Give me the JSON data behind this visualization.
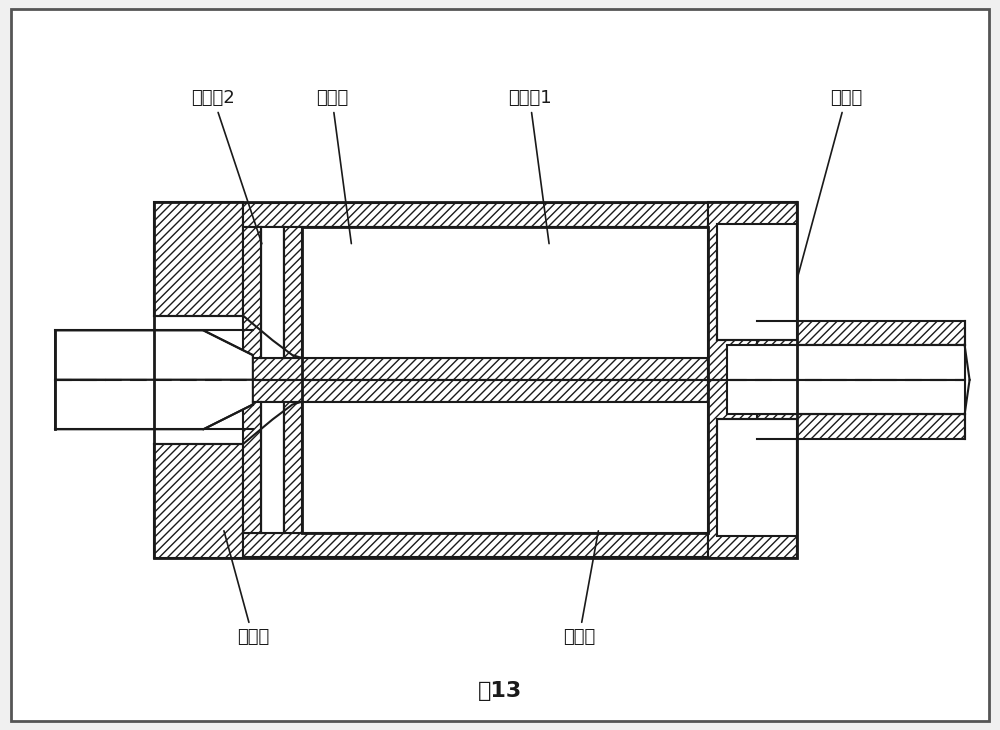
{
  "title": "图13",
  "title_fontsize": 16,
  "label_fontsize": 13,
  "background_color": "#f5f5f5",
  "line_color": "#1a1a1a",
  "hatch_color": "#333333",
  "labels": {
    "zhenkong2": "真空室2",
    "lengjingshi": "冷却室",
    "zhenkong1": "真空室1",
    "resuguan": "热缩管",
    "kuoqianguan": "扩前管",
    "mifengdian": "密封垫"
  }
}
